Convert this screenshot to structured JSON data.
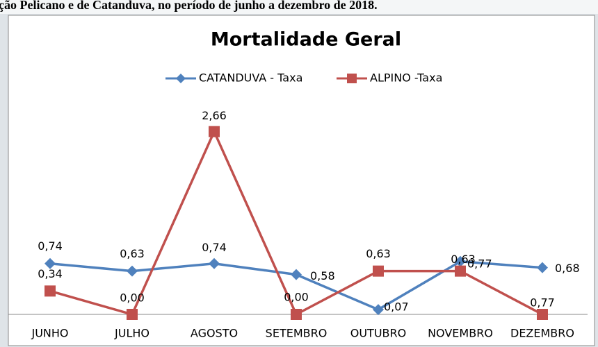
{
  "chart_data": {
    "type": "line",
    "caption": "ção Pelicano e de Catanduva, no período de junho a dezembro de 2018.",
    "title": "Mortalidade Geral",
    "categories": [
      "JUNHO",
      "JULHO",
      "AGOSTO",
      "SETEMBRO",
      "OUTUBRO",
      "NOVEMBRO",
      "DEZEMBRO"
    ],
    "series": [
      {
        "name": "CATANDUVA - Taxa",
        "color": "#4f81bd",
        "marker": "diamond",
        "values": [
          0.74,
          0.63,
          0.74,
          0.58,
          0.07,
          0.77,
          0.68
        ],
        "value_labels": [
          "0,74",
          "0,63",
          "0,74",
          "0,58",
          "0,07",
          "0,77",
          "0,68"
        ]
      },
      {
        "name": "ALPINO -Taxa",
        "color": "#c0504d",
        "marker": "square",
        "values": [
          0.34,
          0,
          2.66,
          0,
          0.63,
          0.63,
          0
        ],
        "value_labels": [
          "0,34",
          "0,00",
          "2,66",
          "0,00",
          "0,63",
          "0,63",
          null
        ]
      }
    ],
    "annotations": [
      {
        "text": "0,77"
      }
    ],
    "ylim": [
      0,
      3
    ],
    "legend": "top"
  }
}
